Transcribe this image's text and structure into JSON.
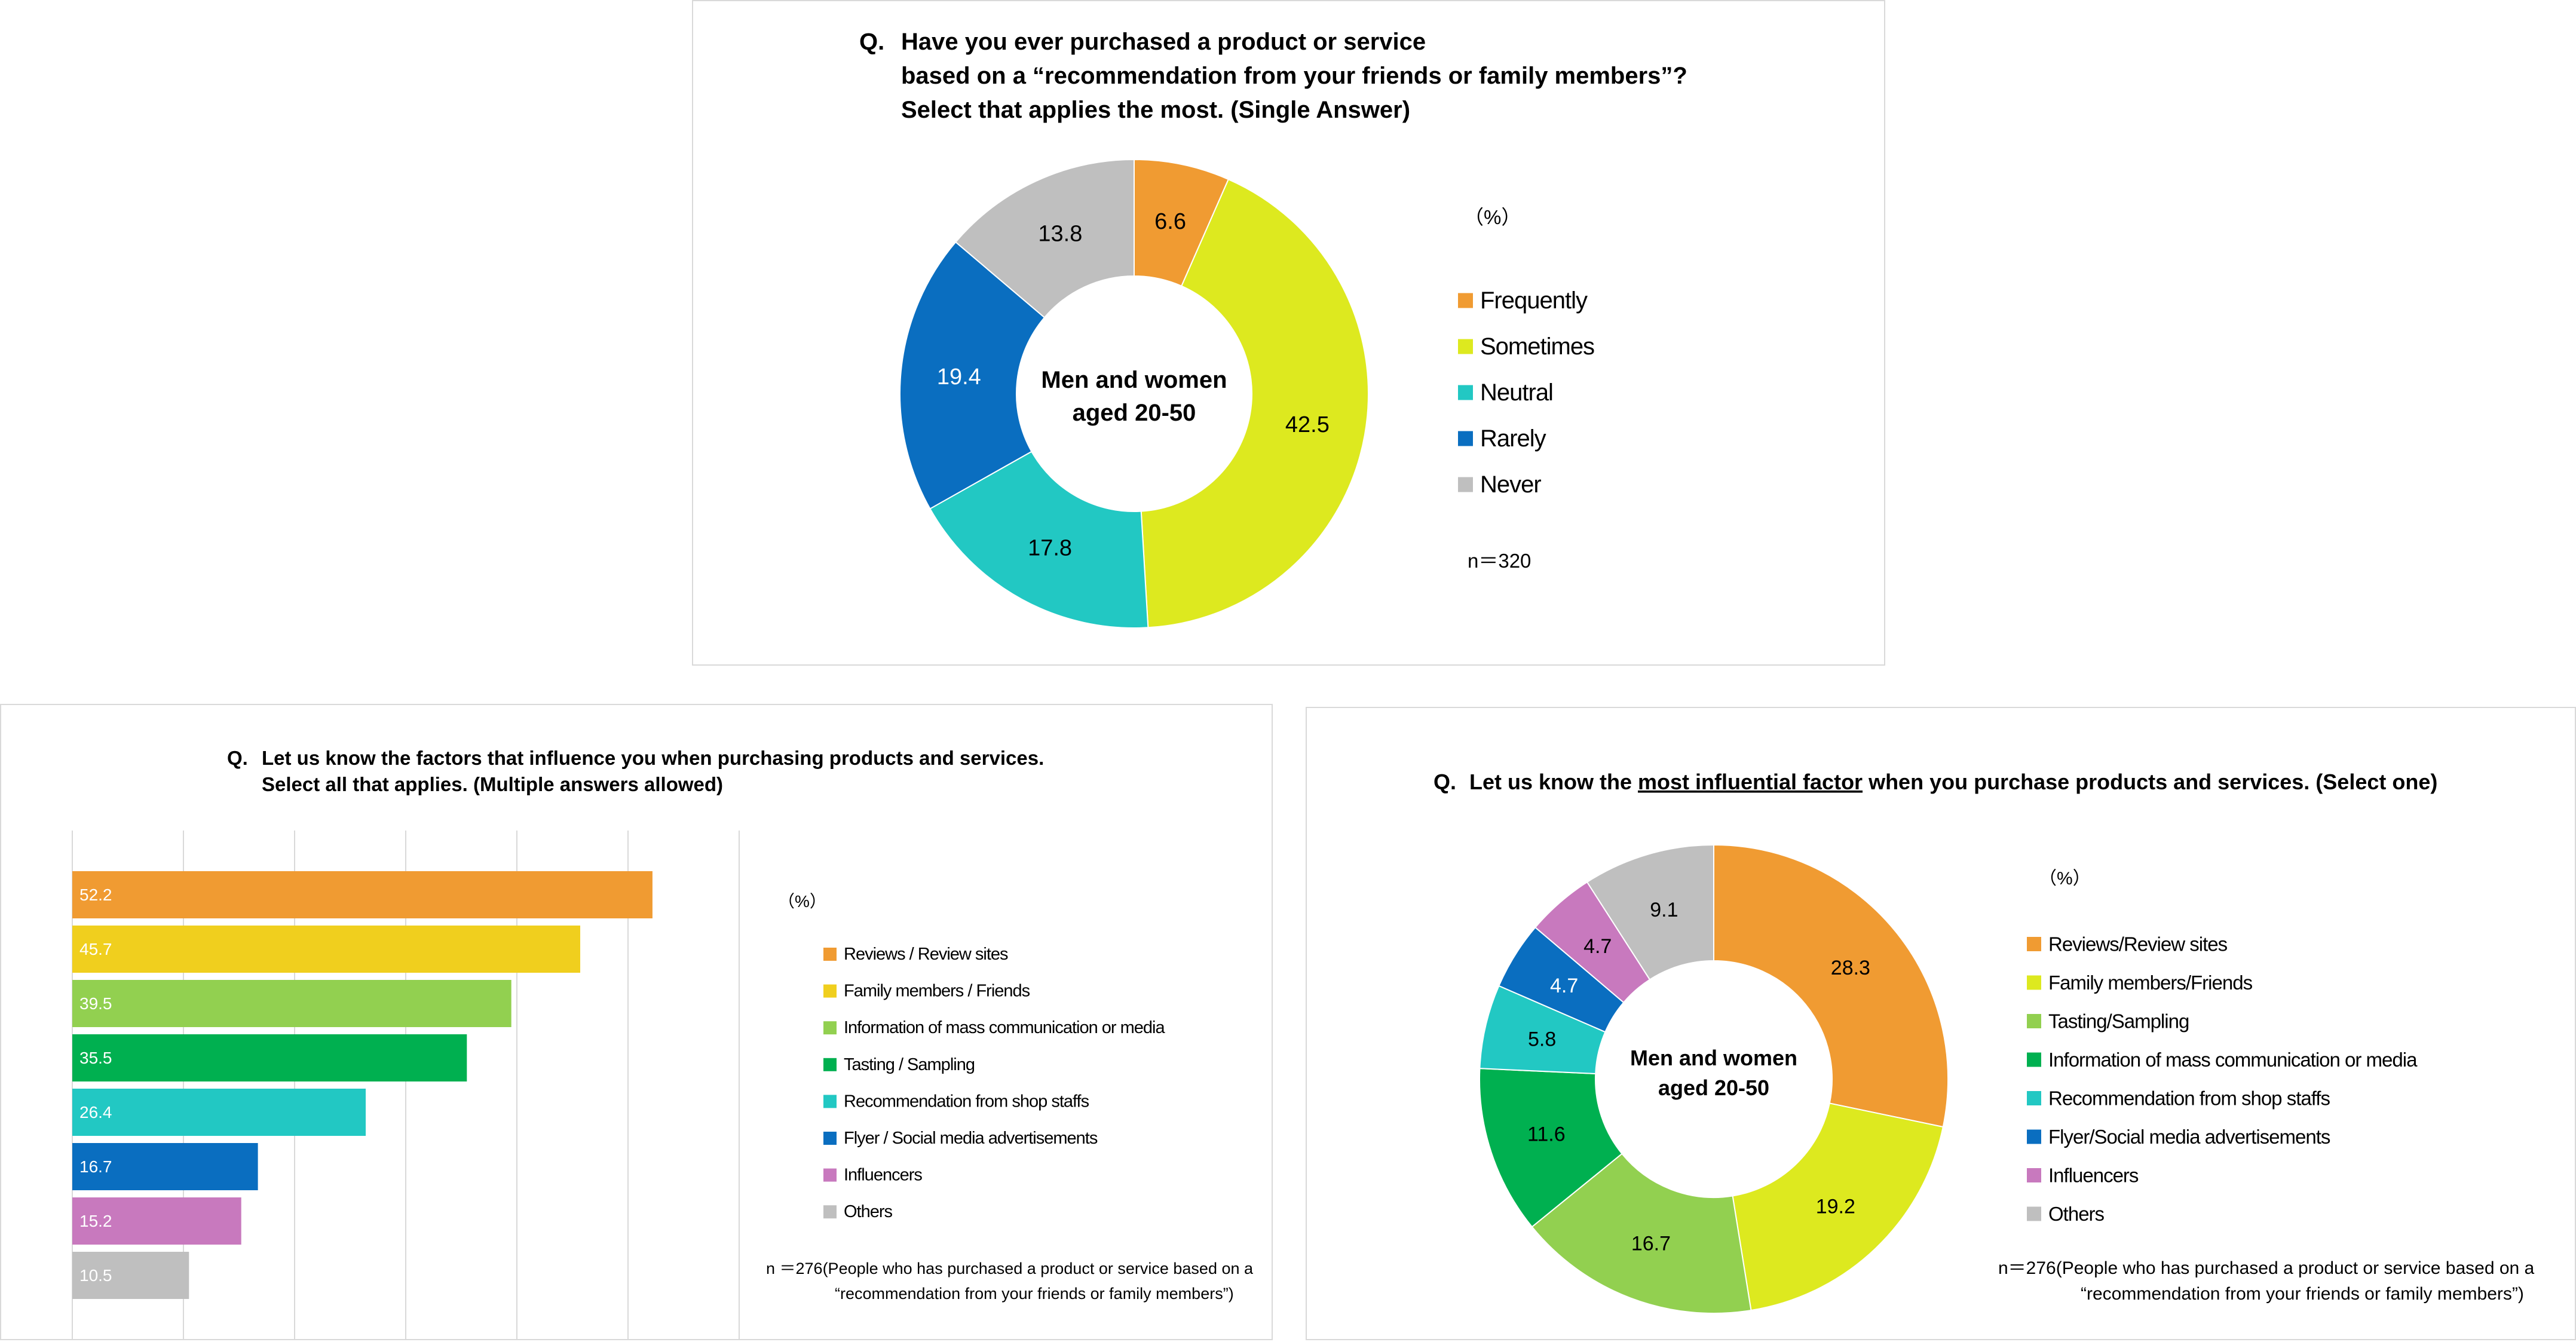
{
  "colors": {
    "orange": "#F09B32",
    "yellow_green": "#DDE91F",
    "teal": "#22C8C3",
    "blue": "#0A6EC0",
    "gray": "#BFBFBF",
    "gold": "#F0CF1E",
    "light_green": "#92D050",
    "green": "#00B050",
    "pink": "#C879BE"
  },
  "panel1": {
    "q_prefix": "Q.",
    "title_lines": [
      "Have you ever purchased a product or service",
      "based on a “recommendation from your friends or family members”?",
      "Select that applies the most.  (Single Answer)"
    ],
    "center_lines": [
      "Men and women",
      "aged 20-50"
    ],
    "unit": "（%）",
    "n_text": "n＝320"
  },
  "panel2": {
    "q_prefix": "Q.",
    "title_lines": [
      "Let us know the factors that influence you when purchasing products and services.",
      "Select all that applies. (Multiple answers allowed)"
    ],
    "unit": "（%）",
    "n_lines": [
      "n ＝276(People who has purchased a product or service based on a",
      "“recommendation from your friends or family members”)"
    ]
  },
  "panel3": {
    "q_prefix": "Q.",
    "title_before": "Let us know the ",
    "title_underlined": "most influential factor",
    "title_after": " when you purchase products and services. (Select one)",
    "center_lines": [
      "Men and women",
      "aged 20-50"
    ],
    "unit": "（%）",
    "n_lines": [
      "n＝276(People who has purchased a product or service based on a",
      "“recommendation from your friends or family members”)"
    ]
  },
  "chart_data": [
    {
      "type": "pie",
      "style": "donut",
      "title": "Have you ever purchased a product or service based on a “recommendation from your friends or family members”? Select that applies the most.  (Single Answer)",
      "unit": "%",
      "legend_position": "right",
      "categories": [
        "Frequently",
        "Sometimes",
        "Neutral",
        "Rarely",
        "Never"
      ],
      "values": [
        6.6,
        42.5,
        17.8,
        19.4,
        13.8
      ],
      "colors": [
        "#F09B32",
        "#DDE91F",
        "#22C8C3",
        "#0A6EC0",
        "#BFBFBF"
      ],
      "label_colors": [
        "#000000",
        "#000000",
        "#000000",
        "#ffffff",
        "#000000"
      ]
    },
    {
      "type": "bar",
      "orientation": "horizontal",
      "title": "Let us know the factors that influence you when purchasing products and services. Select all that applies. (Multiple answers allowed)",
      "unit": "%",
      "legend_position": "right",
      "grid": true,
      "xlim": [
        0,
        60
      ],
      "categories": [
        "Reviews / Review sites",
        "Family members / Friends",
        "Information of mass communication or media",
        "Tasting / Sampling",
        "Recommendation from shop staffs",
        "Flyer / Social media advertisements",
        "Influencers",
        "Others"
      ],
      "values": [
        52.2,
        45.7,
        39.5,
        35.5,
        26.4,
        16.7,
        15.2,
        10.5
      ],
      "colors": [
        "#F09B32",
        "#F0CF1E",
        "#92D050",
        "#00B050",
        "#22C8C3",
        "#0A6EC0",
        "#C879BE",
        "#BFBFBF"
      ]
    },
    {
      "type": "pie",
      "style": "donut",
      "title": "Let us know the most influential factor when you purchase products and services. (Select one)",
      "unit": "%",
      "legend_position": "right",
      "categories": [
        "Reviews/Review sites",
        "Family members/Friends",
        "Tasting/Sampling",
        "Information of mass communication or media",
        "Recommendation from shop staffs",
        "Flyer/Social media advertisements",
        "Influencers",
        "Others"
      ],
      "values": [
        28.3,
        19.2,
        16.7,
        11.6,
        5.8,
        4.7,
        4.7,
        9.1
      ],
      "colors": [
        "#F09B32",
        "#DDE91F",
        "#92D050",
        "#00B050",
        "#22C8C3",
        "#0A6EC0",
        "#C879BE",
        "#BFBFBF"
      ],
      "label_colors": [
        "#000000",
        "#000000",
        "#000000",
        "#000000",
        "#000000",
        "#ffffff",
        "#000000",
        "#000000"
      ]
    }
  ]
}
